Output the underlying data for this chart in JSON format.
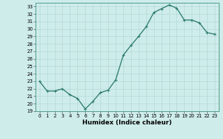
{
  "x": [
    0,
    1,
    2,
    3,
    4,
    5,
    6,
    7,
    8,
    9,
    10,
    11,
    12,
    13,
    14,
    15,
    16,
    17,
    18,
    19,
    20,
    21,
    22,
    23
  ],
  "y": [
    23.0,
    21.7,
    21.7,
    22.0,
    21.2,
    20.7,
    19.3,
    20.3,
    21.5,
    21.8,
    23.2,
    26.5,
    27.8,
    29.0,
    30.3,
    32.2,
    32.7,
    33.2,
    32.8,
    31.2,
    31.2,
    30.8,
    29.5,
    29.3
  ],
  "line_color": "#2e7d6e",
  "marker": "+",
  "marker_size": 3,
  "bg_color": "#ceecea",
  "grid_color": "#b0d8d5",
  "xlabel": "Humidex (Indice chaleur)",
  "ylim": [
    19,
    33.5
  ],
  "xlim": [
    -0.5,
    23.5
  ],
  "yticks": [
    19,
    20,
    21,
    22,
    23,
    24,
    25,
    26,
    27,
    28,
    29,
    30,
    31,
    32,
    33
  ],
  "xticks": [
    0,
    1,
    2,
    3,
    4,
    5,
    6,
    7,
    8,
    9,
    10,
    11,
    12,
    13,
    14,
    15,
    16,
    17,
    18,
    19,
    20,
    21,
    22,
    23
  ],
  "tick_fontsize": 5.0,
  "label_fontsize": 6.5,
  "linewidth": 1.0,
  "markeredgewidth": 0.8
}
